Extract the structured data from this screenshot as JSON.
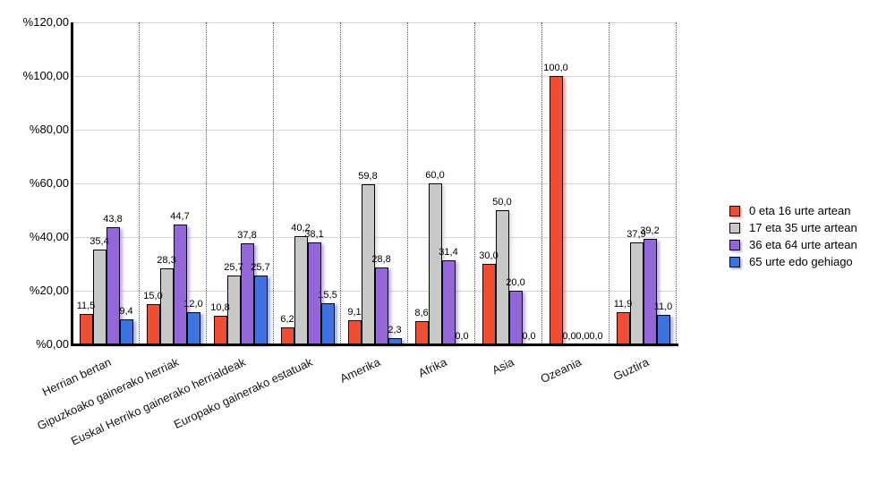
{
  "chart_data": {
    "type": "bar",
    "title": "",
    "categories": [
      "Herrian bertan",
      "Gipuzkoako gainerako herriak",
      "Euskal Herriko gainerako herrialdeak",
      "Europako gainerako estatuak",
      "Amerika",
      "Afrika",
      "Asia",
      "Ozeania",
      "Guztira"
    ],
    "series": [
      {
        "name": "0 eta 16 urte artean",
        "color": "#EE4E33",
        "values": [
          11.5,
          15.0,
          10.8,
          6.2,
          9.1,
          8.6,
          30.0,
          100.0,
          11.9
        ]
      },
      {
        "name": "17 eta 35 urte artean",
        "color": "#C8C8C8",
        "values": [
          35.4,
          28.3,
          25.7,
          40.2,
          59.8,
          60.0,
          50.0,
          0.0,
          37.9
        ]
      },
      {
        "name": "36 eta 64 urte artean",
        "color": "#9467D8",
        "values": [
          43.8,
          44.7,
          37.8,
          38.1,
          28.8,
          31.4,
          20.0,
          0.0,
          39.2
        ]
      },
      {
        "name": "65 urte edo gehiago",
        "color": "#3C73E0",
        "values": [
          9.4,
          12.0,
          25.7,
          15.5,
          2.3,
          0.0,
          0.0,
          0.0,
          11.0
        ]
      }
    ],
    "ylim": [
      0,
      120
    ],
    "yticks": [
      0,
      20,
      40,
      60,
      80,
      100,
      120
    ],
    "ytick_labels": [
      "%0,00",
      "%20,00",
      "%40,00",
      "%60,00",
      "%80,00",
      "%100,00",
      "%120,00"
    ],
    "decimal_separator": ",",
    "grid": true,
    "legend_position": "right",
    "bar_value_labels_shown": true
  }
}
